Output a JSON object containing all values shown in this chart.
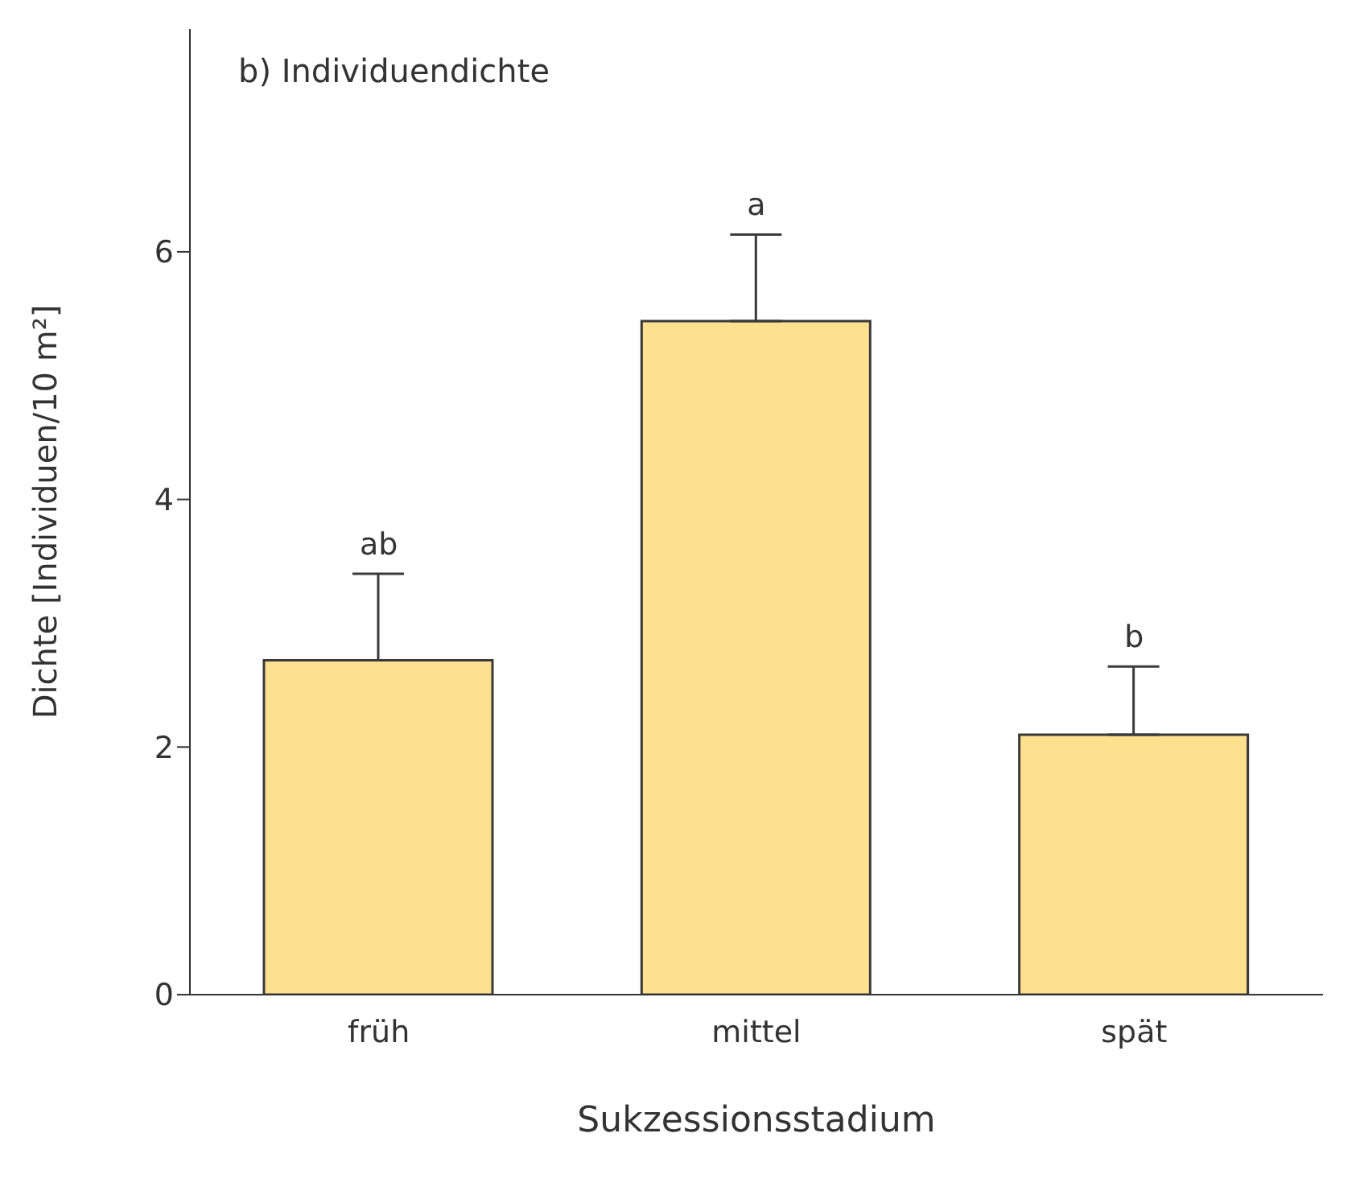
{
  "chart_data": {
    "type": "bar",
    "title": "b) Individuendichte",
    "xlabel": "Sukzessionsstadium",
    "ylabel": "Dichte [Individuen/10 m²]",
    "categories": [
      "früh",
      "mittel",
      "spät"
    ],
    "values": [
      2.7,
      5.44,
      2.1
    ],
    "errors": [
      [
        2.7,
        3.4
      ],
      [
        5.44,
        6.14
      ],
      [
        2.1,
        2.65
      ]
    ],
    "color": "#fde18f",
    "ylim": [
      0,
      7.8
    ],
    "yticks": [
      0,
      2,
      4,
      6
    ],
    "grid": false,
    "legend": false,
    "annotations": [
      "ab",
      "a",
      "b"
    ]
  }
}
